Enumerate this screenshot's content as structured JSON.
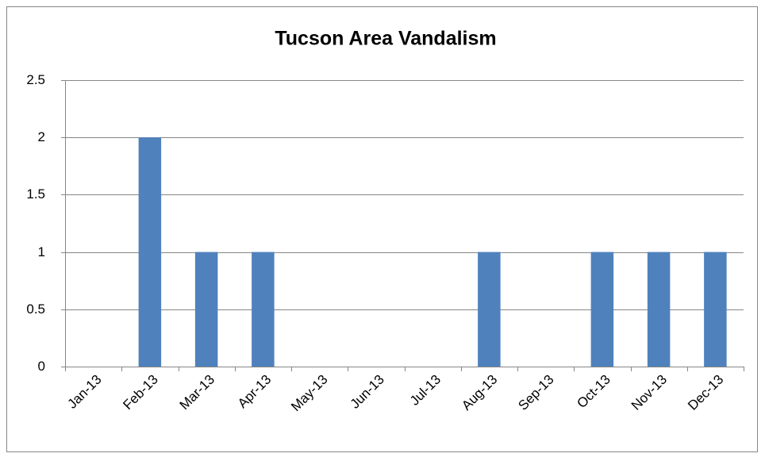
{
  "chart_data": {
    "type": "bar",
    "title": "Tucson Area Vandalism",
    "categories": [
      "Jan-13",
      "Feb-13",
      "Mar-13",
      "Apr-13",
      "May-13",
      "Jun-13",
      "Jul-13",
      "Aug-13",
      "Sep-13",
      "Oct-13",
      "Nov-13",
      "Dec-13"
    ],
    "values": [
      0,
      2,
      1,
      1,
      0,
      0,
      0,
      1,
      0,
      1,
      1,
      1
    ],
    "color": "#4f81bd",
    "ylim": [
      0,
      2.5
    ],
    "yticks": [
      0,
      0.5,
      1,
      1.5,
      2,
      2.5
    ],
    "grid": true
  }
}
